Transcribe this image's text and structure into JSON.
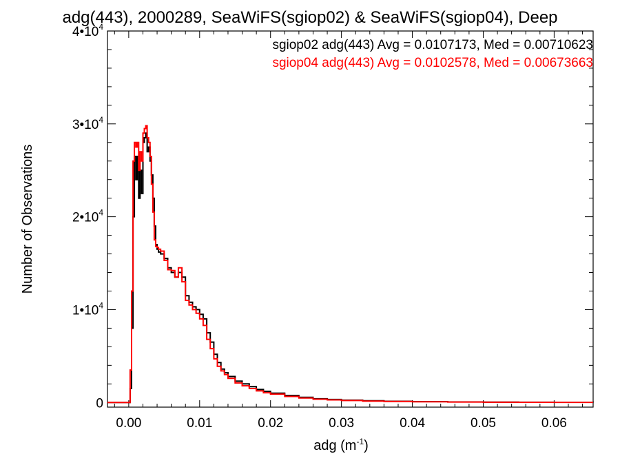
{
  "chart_data": {
    "type": "line",
    "title": "adg(443), 2000289, SeaWiFS(sgiop02) & SeaWiFS(sgiop04), Deep",
    "xlabel": "adg (m",
    "xlabel_sup": "-1",
    "xlabel_close": ")",
    "ylabel": "Number of Observations",
    "xlim": [
      -0.003,
      0.0655
    ],
    "ylim": [
      -500,
      40000
    ],
    "xticks": [
      {
        "value": 0.0,
        "label": "0.00"
      },
      {
        "value": 0.01,
        "label": "0.01"
      },
      {
        "value": 0.02,
        "label": "0.02"
      },
      {
        "value": 0.03,
        "label": "0.03"
      },
      {
        "value": 0.04,
        "label": "0.04"
      },
      {
        "value": 0.05,
        "label": "0.05"
      },
      {
        "value": 0.06,
        "label": "0.06"
      }
    ],
    "yticks": [
      {
        "value": 0,
        "label": "0",
        "sup": ""
      },
      {
        "value": 10000,
        "label": "1•10",
        "sup": "4"
      },
      {
        "value": 20000,
        "label": "2•10",
        "sup": "4"
      },
      {
        "value": 30000,
        "label": "3•10",
        "sup": "4"
      },
      {
        "value": 40000,
        "label": "4•10",
        "sup": "4"
      }
    ],
    "annotations": [
      {
        "text": "sgiop02 adg(443) Avg = 0.0107173, Med = 0.00710623",
        "color": "#000000"
      },
      {
        "text": "sgiop04 adg(443) Avg = 0.0102578, Med = 0.00673663",
        "color": "#ff0000"
      }
    ],
    "series": [
      {
        "color": "#000000",
        "x": [
          -0.003,
          -0.0001,
          0.0002,
          0.0004,
          0.0006,
          0.0008,
          0.001,
          0.0012,
          0.0014,
          0.0016,
          0.0018,
          0.002,
          0.0022,
          0.0024,
          0.0026,
          0.0028,
          0.003,
          0.0032,
          0.0034,
          0.0036,
          0.0038,
          0.004,
          0.0042,
          0.0045,
          0.005,
          0.0055,
          0.006,
          0.0065,
          0.007,
          0.0075,
          0.008,
          0.0085,
          0.009,
          0.0095,
          0.01,
          0.0105,
          0.011,
          0.0115,
          0.012,
          0.0125,
          0.013,
          0.0135,
          0.014,
          0.015,
          0.016,
          0.017,
          0.018,
          0.019,
          0.02,
          0.022,
          0.024,
          0.026,
          0.028,
          0.03,
          0.033,
          0.036,
          0.04,
          0.045,
          0.05,
          0.055,
          0.06,
          0.0655
        ],
        "values": [
          0,
          0,
          1500,
          8000,
          20000,
          26500,
          24000,
          26500,
          22000,
          25000,
          22500,
          28000,
          28500,
          29000,
          27000,
          27500,
          26000,
          24500,
          22000,
          19000,
          17000,
          16500,
          16200,
          16000,
          15500,
          14500,
          14000,
          13500,
          14000,
          13500,
          11500,
          10800,
          10300,
          10000,
          9500,
          9000,
          7500,
          6500,
          5200,
          4300,
          3600,
          3200,
          2800,
          2300,
          2000,
          1700,
          1400,
          1200,
          1000,
          750,
          550,
          400,
          320,
          250,
          180,
          130,
          90,
          60,
          40,
          30,
          20,
          10
        ]
      },
      {
        "color": "#ff0000",
        "x": [
          -0.003,
          -0.0001,
          0.0002,
          0.0004,
          0.0006,
          0.0008,
          0.001,
          0.0012,
          0.0014,
          0.0016,
          0.0018,
          0.002,
          0.0022,
          0.0024,
          0.0026,
          0.0028,
          0.003,
          0.0032,
          0.0034,
          0.0036,
          0.0038,
          0.004,
          0.0042,
          0.0045,
          0.005,
          0.0055,
          0.006,
          0.0065,
          0.007,
          0.0075,
          0.008,
          0.0085,
          0.009,
          0.0095,
          0.01,
          0.0105,
          0.011,
          0.0115,
          0.012,
          0.0125,
          0.013,
          0.0135,
          0.014,
          0.015,
          0.016,
          0.017,
          0.018,
          0.019,
          0.02,
          0.022,
          0.024,
          0.026,
          0.028,
          0.03,
          0.033,
          0.036,
          0.04,
          0.045,
          0.05,
          0.055,
          0.06,
          0.0655
        ],
        "values": [
          0,
          0,
          3500,
          12000,
          26000,
          28000,
          27500,
          28000,
          25000,
          27000,
          26000,
          29000,
          29500,
          29800,
          28500,
          28000,
          26500,
          23500,
          20500,
          17500,
          16800,
          16700,
          16500,
          16300,
          15300,
          14300,
          14200,
          13500,
          14500,
          13000,
          11000,
          10500,
          10000,
          9600,
          9000,
          8300,
          6800,
          5800,
          4700,
          3900,
          3400,
          3000,
          2600,
          2100,
          1800,
          1500,
          1250,
          1050,
          900,
          650,
          480,
          350,
          280,
          210,
          150,
          110,
          75,
          50,
          30,
          20,
          15,
          10
        ]
      }
    ]
  }
}
